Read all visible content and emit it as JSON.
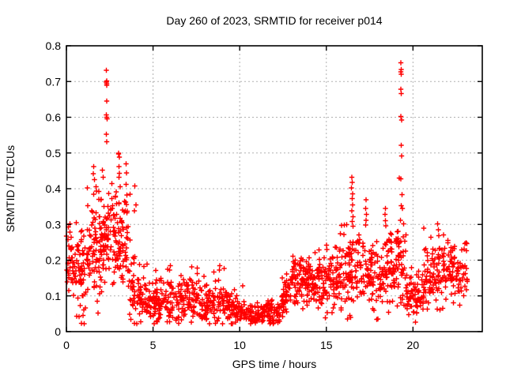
{
  "window": {
    "title": "Day 260 of 2023, SRMTID for receiver p014"
  },
  "chart_data": {
    "type": "scatter",
    "title": "Day 260 of 2023, SRMTID for receiver p014",
    "xlabel": "GPS time / hours",
    "ylabel": "SRMTID / TECUs",
    "xlim": [
      0,
      24
    ],
    "ylim": [
      0,
      0.8
    ],
    "xticks": [
      0,
      5,
      10,
      15,
      20
    ],
    "yticks": [
      0,
      0.1,
      0.2,
      0.3,
      0.4,
      0.5,
      0.6,
      0.7,
      0.8
    ],
    "grid": true,
    "legend": "none",
    "marker": "plus",
    "marker_color": "#ff0000",
    "grid_color": "#b0b0b0",
    "axis_color": "#000000",
    "background": "#ffffff",
    "seed": 42,
    "series_summary": [
      {
        "x0": 0.0,
        "x1": 0.5,
        "n": 35,
        "y0": 0.2,
        "y1": 0.18,
        "s0": 0.045,
        "s1": 0.05,
        "hi": 0.33,
        "hn": 4
      },
      {
        "x0": 0.5,
        "x1": 1.2,
        "n": 55,
        "y0": 0.16,
        "y1": 0.14,
        "s0": 0.055,
        "s1": 0.055,
        "hi": 0.33,
        "hn": 4
      },
      {
        "x0": 1.2,
        "x1": 2.0,
        "n": 70,
        "y0": 0.2,
        "y1": 0.23,
        "s0": 0.06,
        "s1": 0.065,
        "hi": 0.46,
        "hn": 8
      },
      {
        "x0": 2.0,
        "x1": 2.6,
        "n": 55,
        "y0": 0.24,
        "y1": 0.26,
        "s0": 0.055,
        "s1": 0.055,
        "hi": 0.45,
        "hn": 4
      },
      {
        "x0": 2.6,
        "x1": 3.6,
        "n": 85,
        "y0": 0.26,
        "y1": 0.22,
        "s0": 0.06,
        "s1": 0.065,
        "hi": 0.5,
        "hn": 9
      },
      {
        "x0": 3.6,
        "x1": 4.3,
        "n": 55,
        "y0": 0.16,
        "y1": 0.1,
        "s0": 0.05,
        "s1": 0.04,
        "hi": 0.41,
        "hn": 3
      },
      {
        "x0": 4.3,
        "x1": 5.2,
        "n": 60,
        "y0": 0.09,
        "y1": 0.085,
        "s0": 0.03,
        "s1": 0.028,
        "hi": 0.2,
        "hn": 3
      },
      {
        "x0": 5.2,
        "x1": 6.5,
        "n": 85,
        "y0": 0.085,
        "y1": 0.08,
        "s0": 0.028,
        "s1": 0.03,
        "hi": 0.21,
        "hn": 4
      },
      {
        "x0": 6.5,
        "x1": 8.0,
        "n": 95,
        "y0": 0.09,
        "y1": 0.085,
        "s0": 0.032,
        "s1": 0.03,
        "hi": 0.19,
        "hn": 5
      },
      {
        "x0": 8.0,
        "x1": 9.3,
        "n": 80,
        "y0": 0.08,
        "y1": 0.075,
        "s0": 0.028,
        "s1": 0.026,
        "hi": 0.18,
        "hn": 4
      },
      {
        "x0": 9.3,
        "x1": 10.3,
        "n": 65,
        "y0": 0.062,
        "y1": 0.055,
        "s0": 0.02,
        "s1": 0.018,
        "hi": 0.15,
        "hn": 3
      },
      {
        "x0": 10.3,
        "x1": 12.4,
        "n": 135,
        "y0": 0.05,
        "y1": 0.048,
        "s0": 0.016,
        "s1": 0.015,
        "hi": 0.09,
        "hn": 4
      },
      {
        "x0": 12.4,
        "x1": 12.9,
        "n": 40,
        "y0": 0.07,
        "y1": 0.13,
        "s0": 0.025,
        "s1": 0.03,
        "hi": 0.17,
        "hn": 2
      },
      {
        "x0": 12.9,
        "x1": 14.0,
        "n": 85,
        "y0": 0.15,
        "y1": 0.14,
        "s0": 0.033,
        "s1": 0.035,
        "hi": 0.2,
        "hn": 5
      },
      {
        "x0": 14.0,
        "x1": 15.2,
        "n": 85,
        "y0": 0.13,
        "y1": 0.135,
        "s0": 0.038,
        "s1": 0.04,
        "hi": 0.28,
        "hn": 6
      },
      {
        "x0": 15.2,
        "x1": 16.3,
        "n": 80,
        "y0": 0.14,
        "y1": 0.16,
        "s0": 0.045,
        "s1": 0.05,
        "hi": 0.3,
        "hn": 6
      },
      {
        "x0": 16.3,
        "x1": 17.0,
        "n": 55,
        "y0": 0.17,
        "y1": 0.16,
        "s0": 0.055,
        "s1": 0.05,
        "hi": 0.28,
        "hn": 4
      },
      {
        "x0": 17.0,
        "x1": 18.0,
        "n": 70,
        "y0": 0.16,
        "y1": 0.15,
        "s0": 0.05,
        "s1": 0.05,
        "hi": 0.27,
        "hn": 5
      },
      {
        "x0": 18.0,
        "x1": 19.0,
        "n": 70,
        "y0": 0.16,
        "y1": 0.17,
        "s0": 0.05,
        "s1": 0.05,
        "hi": 0.28,
        "hn": 5
      },
      {
        "x0": 19.0,
        "x1": 19.6,
        "n": 45,
        "y0": 0.19,
        "y1": 0.17,
        "s0": 0.055,
        "s1": 0.05,
        "hi": 0.3,
        "hn": 4
      },
      {
        "x0": 19.6,
        "x1": 20.6,
        "n": 70,
        "y0": 0.1,
        "y1": 0.1,
        "s0": 0.028,
        "s1": 0.03,
        "hi": 0.18,
        "hn": 3
      },
      {
        "x0": 20.6,
        "x1": 21.8,
        "n": 85,
        "y0": 0.15,
        "y1": 0.16,
        "s0": 0.045,
        "s1": 0.045,
        "hi": 0.29,
        "hn": 6
      },
      {
        "x0": 21.8,
        "x1": 23.15,
        "n": 90,
        "y0": 0.17,
        "y1": 0.17,
        "s0": 0.04,
        "s1": 0.035,
        "hi": 0.27,
        "hn": 5
      }
    ],
    "outlier_points": [
      [
        2.3,
        0.731
      ],
      [
        2.32,
        0.702
      ],
      [
        2.31,
        0.698
      ],
      [
        2.33,
        0.694
      ],
      [
        2.32,
        0.69
      ],
      [
        2.33,
        0.645
      ],
      [
        2.31,
        0.607
      ],
      [
        2.32,
        0.6
      ],
      [
        2.34,
        0.596
      ],
      [
        2.31,
        0.552
      ],
      [
        2.33,
        0.532
      ],
      [
        1.58,
        0.462
      ],
      [
        1.55,
        0.442
      ],
      [
        1.62,
        0.425
      ],
      [
        1.72,
        0.405
      ],
      [
        1.88,
        0.392
      ],
      [
        2.08,
        0.452
      ],
      [
        2.12,
        0.432
      ],
      [
        2.62,
        0.372
      ],
      [
        2.66,
        0.352
      ],
      [
        3.02,
        0.497
      ],
      [
        3.05,
        0.488
      ],
      [
        3.03,
        0.462
      ],
      [
        3.06,
        0.443
      ],
      [
        3.04,
        0.432
      ],
      [
        3.1,
        0.405
      ],
      [
        3.45,
        0.412
      ],
      [
        3.48,
        0.382
      ],
      [
        3.42,
        0.362
      ],
      [
        3.95,
        0.408
      ],
      [
        19.3,
        0.753
      ],
      [
        19.32,
        0.734
      ],
      [
        19.31,
        0.727
      ],
      [
        19.33,
        0.72
      ],
      [
        19.3,
        0.678
      ],
      [
        19.33,
        0.666
      ],
      [
        19.31,
        0.602
      ],
      [
        19.34,
        0.592
      ],
      [
        19.32,
        0.522
      ],
      [
        19.35,
        0.492
      ],
      [
        19.22,
        0.43
      ],
      [
        19.3,
        0.428
      ],
      [
        19.36,
        0.383
      ],
      [
        19.33,
        0.352
      ],
      [
        19.4,
        0.345
      ],
      [
        19.27,
        0.312
      ],
      [
        19.45,
        0.302
      ],
      [
        16.48,
        0.432
      ],
      [
        16.5,
        0.418
      ],
      [
        16.46,
        0.402
      ],
      [
        16.52,
        0.386
      ],
      [
        16.49,
        0.372
      ],
      [
        16.51,
        0.355
      ],
      [
        16.47,
        0.338
      ],
      [
        16.53,
        0.322
      ],
      [
        16.5,
        0.308
      ],
      [
        16.55,
        0.295
      ],
      [
        17.3,
        0.369
      ],
      [
        17.28,
        0.345
      ],
      [
        17.32,
        0.328
      ],
      [
        17.3,
        0.312
      ],
      [
        17.26,
        0.298
      ],
      [
        18.4,
        0.345
      ],
      [
        18.38,
        0.328
      ],
      [
        18.42,
        0.31
      ],
      [
        18.44,
        0.296
      ],
      [
        21.42,
        0.302
      ],
      [
        21.46,
        0.285
      ],
      [
        21.5,
        0.268
      ],
      [
        13.55,
        0.205
      ],
      [
        13.5,
        0.198
      ],
      [
        8.85,
        0.185
      ],
      [
        8.82,
        0.172
      ],
      [
        6.0,
        0.185
      ],
      [
        5.95,
        0.172
      ],
      [
        7.55,
        0.178
      ],
      [
        5.2,
        0.03
      ],
      [
        7.2,
        0.026
      ],
      [
        8.6,
        0.023
      ],
      [
        10.9,
        0.028
      ],
      [
        11.8,
        0.025
      ],
      [
        12.1,
        0.03
      ]
    ]
  }
}
